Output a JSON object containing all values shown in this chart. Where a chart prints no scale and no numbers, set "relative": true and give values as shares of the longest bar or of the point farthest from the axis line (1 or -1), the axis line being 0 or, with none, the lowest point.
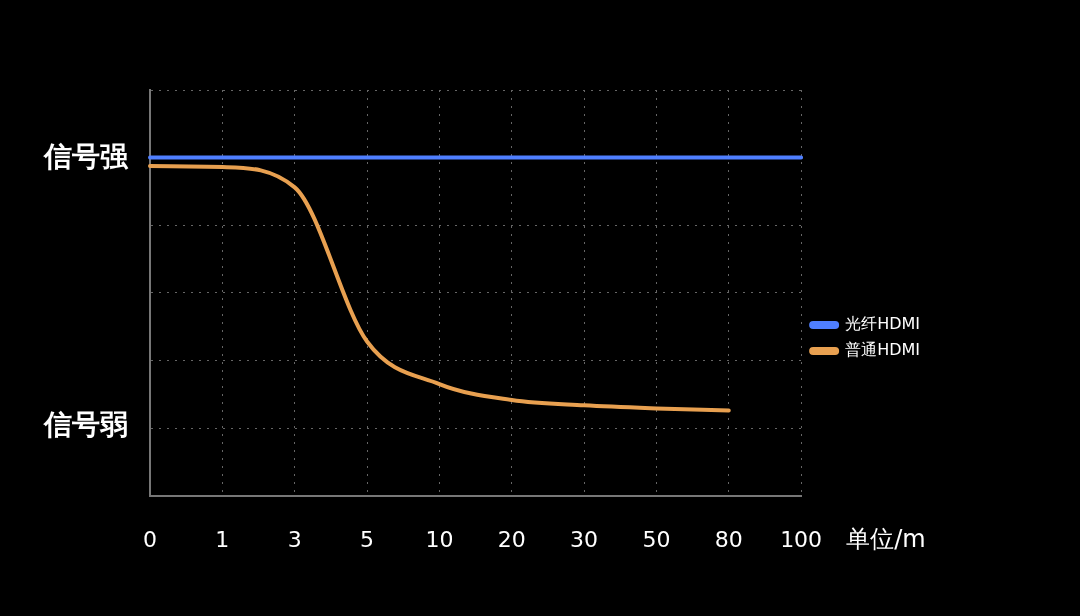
{
  "chart_data": {
    "type": "line",
    "relative": true,
    "categories": [
      "0",
      "1",
      "3",
      "5",
      "10",
      "20",
      "30",
      "50",
      "80",
      "100"
    ],
    "series": [
      {
        "name": "光纤HDMI",
        "color": "#4f7fff",
        "values": [
          1,
          1,
          1,
          1,
          1,
          1,
          1,
          1,
          1,
          1
        ]
      },
      {
        "name": "普通HDMI",
        "color": "#e8a050",
        "values": [
          0.975,
          0.972,
          0.912,
          0.456,
          0.33,
          0.283,
          0.267,
          0.258,
          0.252,
          null
        ]
      }
    ],
    "xlabel": "单位/m",
    "annotations": [
      "信号强",
      "信号弱"
    ],
    "grid": true,
    "legend": "right",
    "marker": "none",
    "line_style": "solid"
  }
}
